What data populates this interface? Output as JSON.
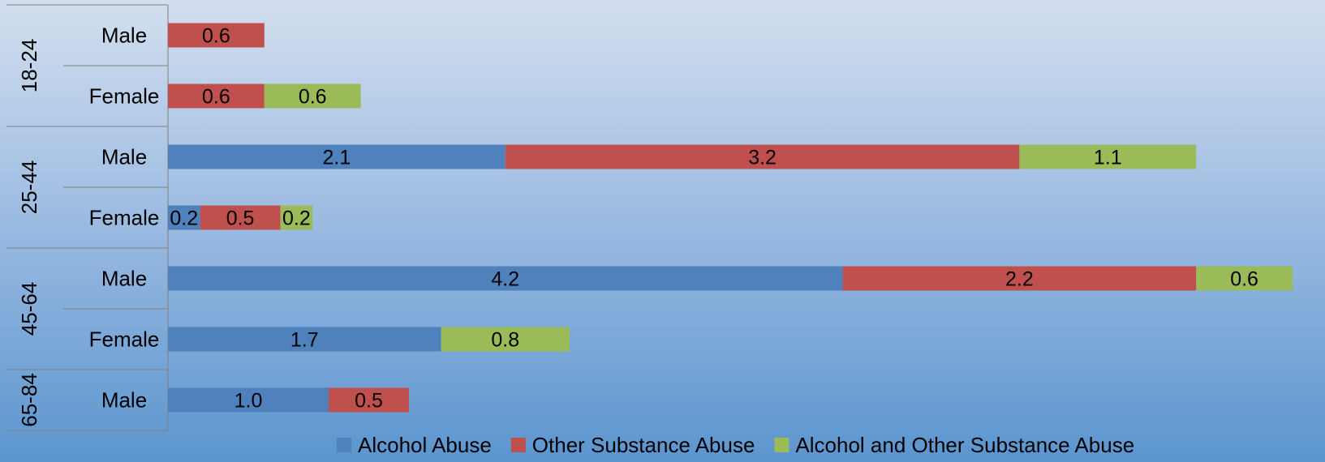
{
  "chart_data": {
    "type": "bar",
    "orientation": "horizontal",
    "stacked": true,
    "title": "",
    "xlabel": "",
    "ylabel": "",
    "xlim": [
      0,
      7
    ],
    "grid": false,
    "legend_position": "bottom",
    "groups": [
      {
        "label": "18-24",
        "categories": [
          "Male",
          "Female"
        ]
      },
      {
        "label": "25-44",
        "categories": [
          "Male",
          "Female"
        ]
      },
      {
        "label": "45-64",
        "categories": [
          "Male",
          "Female"
        ]
      },
      {
        "label": "65-84",
        "categories": [
          "Male"
        ]
      }
    ],
    "categories": [
      "Male",
      "Female",
      "Male",
      "Female",
      "Male",
      "Female",
      "Male"
    ],
    "series": [
      {
        "name": "Alcohol Abuse",
        "color": "#4f81bd",
        "values": [
          null,
          null,
          2.1,
          0.2,
          4.2,
          1.7,
          1.0
        ],
        "labels": [
          "",
          "",
          "2.1",
          "0.2",
          "4.2",
          "1.7",
          "1.0"
        ]
      },
      {
        "name": "Other Substance Abuse",
        "color": "#c0504d",
        "values": [
          0.6,
          0.6,
          3.2,
          0.5,
          2.2,
          null,
          0.5
        ],
        "labels": [
          "0.6",
          "0.6",
          "3.2",
          "0.5",
          "2.2",
          "",
          "0.5"
        ]
      },
      {
        "name": "Alcohol and Other Substance Abuse",
        "color": "#9bbb59",
        "values": [
          null,
          0.6,
          1.1,
          0.2,
          0.6,
          0.8,
          null
        ],
        "labels": [
          "",
          "0.6",
          "1.1",
          "0.2",
          "0.6",
          "0.8",
          ""
        ]
      }
    ]
  }
}
